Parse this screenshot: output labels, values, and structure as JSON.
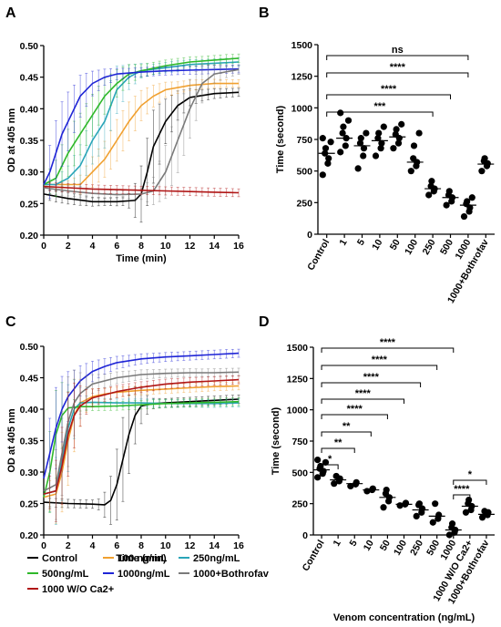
{
  "colors": {
    "control": "#000000",
    "c100": "#f0a030",
    "c250": "#2aa5b8",
    "c500": "#2fb82a",
    "c1000": "#1f25d6",
    "bothrofav": "#7a7a7a",
    "wo_ca": "#b01616"
  },
  "legend": [
    {
      "label": "Control",
      "color_key": "control"
    },
    {
      "label": "100 ng/mL",
      "color_key": "c100"
    },
    {
      "label": "250ng/mL",
      "color_key": "c250"
    },
    {
      "label": "500ng/mL",
      "color_key": "c500"
    },
    {
      "label": "1000ng/mL",
      "color_key": "c1000"
    },
    {
      "label": "1000+Bothrofav",
      "color_key": "bothrofav"
    },
    {
      "label": "1000 W/O Ca2+",
      "color_key": "wo_ca"
    }
  ],
  "chart_data": [
    {
      "panel": "A",
      "type": "line",
      "xlabel": "Time (min)",
      "ylabel": "OD at 405 nm",
      "xlim": [
        0,
        16
      ],
      "ylim": [
        0.2,
        0.5
      ],
      "xticks": [
        "0",
        "2",
        "4",
        "6",
        "8",
        "10",
        "12",
        "14",
        "16"
      ],
      "yticks": [
        "0.20",
        "0.25",
        "0.30",
        "0.35",
        "0.40",
        "0.45",
        "0.50"
      ],
      "error_bars": true,
      "series": [
        {
          "name": "Control",
          "color_key": "control",
          "x": [
            0,
            2,
            4,
            6,
            7.5,
            8,
            8.5,
            9,
            10,
            11,
            12,
            14,
            16
          ],
          "y": [
            0.265,
            0.258,
            0.253,
            0.253,
            0.255,
            0.265,
            0.3,
            0.34,
            0.38,
            0.405,
            0.418,
            0.424,
            0.426
          ]
        },
        {
          "name": "100 ng/mL",
          "color_key": "c100",
          "x": [
            0,
            2,
            3,
            4,
            5,
            6,
            7,
            8,
            9,
            10,
            12,
            14,
            16
          ],
          "y": [
            0.28,
            0.28,
            0.28,
            0.3,
            0.32,
            0.35,
            0.38,
            0.405,
            0.42,
            0.43,
            0.437,
            0.44,
            0.44
          ]
        },
        {
          "name": "250ng/mL",
          "color_key": "c250",
          "x": [
            0,
            1,
            2,
            3,
            4,
            5,
            6,
            7,
            8,
            10,
            12,
            14,
            16
          ],
          "y": [
            0.28,
            0.28,
            0.29,
            0.31,
            0.35,
            0.38,
            0.43,
            0.45,
            0.46,
            0.465,
            0.47,
            0.472,
            0.474
          ]
        },
        {
          "name": "500ng/mL",
          "color_key": "c500",
          "x": [
            0,
            1,
            2,
            3,
            4,
            5,
            6,
            7,
            8,
            10,
            12,
            14,
            16
          ],
          "y": [
            0.28,
            0.29,
            0.33,
            0.36,
            0.39,
            0.42,
            0.44,
            0.455,
            0.46,
            0.468,
            0.474,
            0.477,
            0.48
          ]
        },
        {
          "name": "1000ng/mL",
          "color_key": "c1000",
          "x": [
            0,
            0.5,
            1,
            1.5,
            2,
            3,
            4,
            5,
            6,
            8,
            10,
            12,
            14,
            16
          ],
          "y": [
            0.28,
            0.3,
            0.33,
            0.36,
            0.38,
            0.42,
            0.44,
            0.45,
            0.455,
            0.458,
            0.46,
            0.461,
            0.462,
            0.463
          ]
        },
        {
          "name": "1000+Bothrofav",
          "color_key": "bothrofav",
          "x": [
            0,
            2,
            4,
            6,
            8,
            9,
            10,
            11,
            12,
            13,
            14,
            16
          ],
          "y": [
            0.275,
            0.27,
            0.266,
            0.264,
            0.265,
            0.27,
            0.3,
            0.35,
            0.4,
            0.44,
            0.455,
            0.462
          ]
        },
        {
          "name": "1000 W/O Ca2+",
          "color_key": "wo_ca",
          "x": [
            0,
            2,
            4,
            6,
            8,
            10,
            12,
            14,
            16
          ],
          "y": [
            0.277,
            0.275,
            0.273,
            0.272,
            0.271,
            0.27,
            0.269,
            0.268,
            0.267
          ]
        }
      ]
    },
    {
      "panel": "B",
      "type": "scatter",
      "ylabel": "Time (second)",
      "ylim": [
        0,
        1500
      ],
      "yticks": [
        "0",
        "250",
        "500",
        "750",
        "1000",
        "1250",
        "1500"
      ],
      "categories": [
        "Control",
        "1",
        "5",
        "10",
        "50",
        "100",
        "250",
        "500",
        "1000",
        "1000+Bothrofav"
      ],
      "means": [
        640,
        760,
        700,
        740,
        770,
        570,
        360,
        290,
        230,
        555
      ],
      "points": [
        [
          470,
          560,
          600,
          640,
          680,
          730,
          760
        ],
        [
          650,
          700,
          760,
          800,
          850,
          900,
          960
        ],
        [
          520,
          620,
          680,
          720,
          760,
          800
        ],
        [
          620,
          680,
          720,
          760,
          800,
          850
        ],
        [
          680,
          720,
          760,
          790,
          830,
          870
        ],
        [
          500,
          540,
          570,
          600,
          700,
          800
        ],
        [
          310,
          340,
          360,
          380,
          420
        ],
        [
          230,
          260,
          290,
          310,
          340
        ],
        [
          140,
          180,
          210,
          240,
          260,
          290
        ],
        [
          500,
          540,
          560,
          580,
          600
        ]
      ],
      "comparisons": [
        {
          "from": "Control",
          "to": "1000",
          "label": "ns"
        },
        {
          "from": "Control",
          "to": "1000",
          "label": "****"
        },
        {
          "from": "Control",
          "to": "500",
          "label": "****"
        },
        {
          "from": "Control",
          "to": "250",
          "label": "***"
        }
      ]
    },
    {
      "panel": "C",
      "type": "line",
      "xlabel": "Time (min)",
      "ylabel": "OD at 405 nm",
      "xlim": [
        0,
        16
      ],
      "ylim": [
        0.2,
        0.5
      ],
      "xticks": [
        "0",
        "2",
        "4",
        "6",
        "8",
        "10",
        "12",
        "14",
        "16"
      ],
      "yticks": [
        "0.20",
        "0.25",
        "0.30",
        "0.35",
        "0.40",
        "0.45",
        "0.50"
      ],
      "error_bars": true,
      "series": [
        {
          "name": "Control",
          "color_key": "control",
          "x": [
            0,
            2,
            4,
            5,
            5.5,
            6,
            6.5,
            7,
            7.5,
            8,
            9,
            10,
            12,
            14,
            16
          ],
          "y": [
            0.252,
            0.25,
            0.249,
            0.248,
            0.255,
            0.28,
            0.32,
            0.36,
            0.39,
            0.405,
            0.409,
            0.41,
            0.412,
            0.414,
            0.416
          ]
        },
        {
          "name": "100 ng/mL",
          "color_key": "c100",
          "x": [
            0,
            1,
            1.5,
            2,
            2.5,
            3,
            4,
            5,
            6,
            8,
            10,
            12,
            14,
            16
          ],
          "y": [
            0.26,
            0.265,
            0.3,
            0.35,
            0.39,
            0.41,
            0.42,
            0.424,
            0.427,
            0.43,
            0.432,
            0.434,
            0.436,
            0.437
          ]
        },
        {
          "name": "250ng/mL",
          "color_key": "c250",
          "x": [
            0,
            1,
            1.5,
            2,
            2.5,
            3,
            4,
            6,
            8,
            10,
            12,
            14,
            16
          ],
          "y": [
            0.265,
            0.27,
            0.32,
            0.37,
            0.4,
            0.41,
            0.411,
            0.41,
            0.41,
            0.409,
            0.409,
            0.409,
            0.41
          ]
        },
        {
          "name": "500ng/mL",
          "color_key": "c500",
          "x": [
            0,
            0.5,
            1,
            1.5,
            2,
            3,
            4,
            6,
            8,
            10,
            12,
            14,
            16
          ],
          "y": [
            0.26,
            0.3,
            0.36,
            0.39,
            0.402,
            0.404,
            0.404,
            0.405,
            0.407,
            0.409,
            0.41,
            0.411,
            0.412
          ]
        },
        {
          "name": "1000ng/mL",
          "color_key": "c1000",
          "x": [
            0,
            0.5,
            1,
            1.5,
            2,
            3,
            4,
            5,
            6,
            8,
            10,
            12,
            14,
            16
          ],
          "y": [
            0.29,
            0.33,
            0.37,
            0.4,
            0.42,
            0.445,
            0.46,
            0.468,
            0.474,
            0.48,
            0.483,
            0.485,
            0.487,
            0.489
          ]
        },
        {
          "name": "1000+Bothrofav",
          "color_key": "bothrofav",
          "x": [
            0,
            1,
            1.5,
            2,
            2.5,
            3,
            4,
            6,
            8,
            10,
            12,
            14,
            16
          ],
          "y": [
            0.27,
            0.28,
            0.33,
            0.38,
            0.41,
            0.425,
            0.44,
            0.45,
            0.455,
            0.457,
            0.458,
            0.458,
            0.459
          ]
        },
        {
          "name": "1000 W/O Ca2+",
          "color_key": "wo_ca",
          "x": [
            0,
            1,
            1.5,
            2,
            2.5,
            3,
            4,
            6,
            8,
            10,
            12,
            14,
            16
          ],
          "y": [
            0.265,
            0.27,
            0.31,
            0.36,
            0.39,
            0.405,
            0.418,
            0.428,
            0.435,
            0.44,
            0.443,
            0.445,
            0.447
          ]
        }
      ]
    },
    {
      "panel": "D",
      "type": "scatter",
      "xlabel": "Venom concentration (ng/mL)",
      "ylabel": "Time (second)",
      "ylim": [
        0,
        1500
      ],
      "yticks": [
        "0",
        "250",
        "500",
        "750",
        "1000",
        "1250",
        "1500"
      ],
      "categories": [
        "Control",
        "1",
        "5",
        "10",
        "50",
        "100",
        "250",
        "500",
        "1000",
        "1000 W/O Ca2+",
        "1000+Bothrofav"
      ],
      "means": [
        520,
        440,
        410,
        360,
        300,
        245,
        200,
        150,
        40,
        230,
        165
      ],
      "points": [
        [
          460,
          490,
          510,
          530,
          550,
          580,
          600
        ],
        [
          410,
          430,
          450,
          470
        ],
        [
          390,
          405,
          420
        ],
        [
          350,
          360,
          370
        ],
        [
          220,
          270,
          300,
          330,
          360
        ],
        [
          235,
          245,
          255
        ],
        [
          150,
          180,
          210,
          240,
          250
        ],
        [
          100,
          130,
          160,
          250
        ],
        [
          0,
          20,
          40,
          60,
          90
        ],
        [
          180,
          200,
          230,
          250,
          280
        ],
        [
          140,
          160,
          180,
          190
        ]
      ],
      "comparisons": [
        {
          "from": "Control",
          "to": "1000",
          "label": "****"
        },
        {
          "from": "Control",
          "to": "500",
          "label": "****"
        },
        {
          "from": "Control",
          "to": "250",
          "label": "****"
        },
        {
          "from": "Control",
          "to": "100",
          "label": "****"
        },
        {
          "from": "Control",
          "to": "50",
          "label": "****"
        },
        {
          "from": "Control",
          "to": "10",
          "label": "**"
        },
        {
          "from": "Control",
          "to": "5",
          "label": "**"
        },
        {
          "from": "Control",
          "to": "1",
          "label": "*"
        },
        {
          "from": "1000",
          "to": "1000 W/O Ca2+",
          "label": "****"
        },
        {
          "from": "1000",
          "to": "1000+Bothrofav",
          "label": "*"
        }
      ]
    }
  ]
}
